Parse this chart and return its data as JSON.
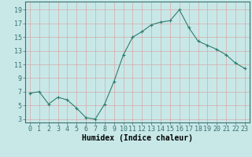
{
  "x": [
    0,
    1,
    2,
    3,
    4,
    5,
    6,
    7,
    8,
    9,
    10,
    11,
    12,
    13,
    14,
    15,
    16,
    17,
    18,
    19,
    20,
    21,
    22,
    23
  ],
  "y": [
    6.8,
    7.0,
    5.2,
    6.2,
    5.8,
    4.6,
    3.2,
    3.0,
    5.2,
    8.5,
    12.4,
    15.0,
    15.8,
    16.8,
    17.2,
    17.4,
    19.0,
    16.4,
    14.4,
    13.8,
    13.2,
    12.4,
    11.2,
    10.4
  ],
  "line_color": "#2e7d6e",
  "marker": "+",
  "marker_size": 3,
  "bg_color": "#c8e8e8",
  "grid_color": "#d8a8a8",
  "xlabel": "Humidex (Indice chaleur)",
  "ylabel_ticks": [
    3,
    5,
    7,
    9,
    11,
    13,
    15,
    17,
    19
  ],
  "ylim": [
    2.5,
    20.2
  ],
  "xlim": [
    -0.5,
    23.5
  ],
  "tick_fontsize": 6,
  "xlabel_fontsize": 7
}
